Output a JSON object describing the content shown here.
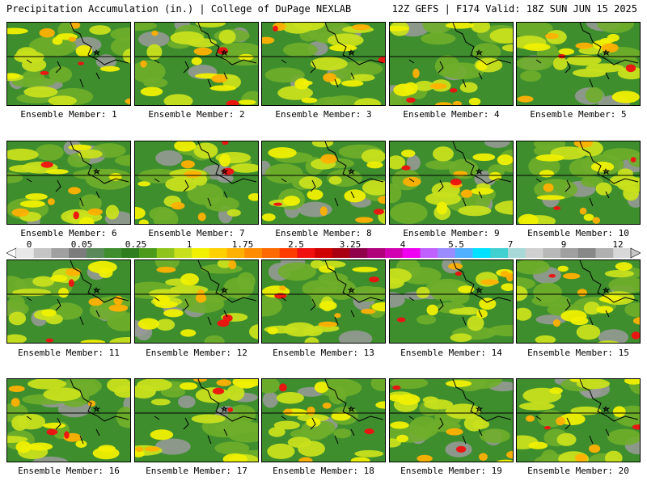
{
  "header": {
    "title": "Precipitation Accumulation (in.) | College of DuPage NEXLAB",
    "run": "12Z GEFS | F174 Valid: 18Z SUN JUN 15 2025"
  },
  "colorbar": {
    "labels": [
      "0",
      "0.05",
      "0.25",
      "1",
      "1.75",
      "2.5",
      "3.25",
      "4",
      "5.5",
      "7",
      "9",
      "12"
    ],
    "colors": [
      "#e8e8e8",
      "#c4c4c4",
      "#a0a0a0",
      "#7c7c7c",
      "#5a8a5a",
      "#3e8e2e",
      "#2e7d1e",
      "#4c9a1c",
      "#8fc41c",
      "#c8e01c",
      "#f0f000",
      "#ffd000",
      "#ffb000",
      "#ff8c00",
      "#ff6a00",
      "#ff3c00",
      "#f01010",
      "#d00000",
      "#a80010",
      "#90004a",
      "#b0007a",
      "#d000b0",
      "#f000f0",
      "#c060ff",
      "#9a8cff",
      "#50b0ff",
      "#00e0ff",
      "#40d0d0",
      "#a8d8d8",
      "#d0d0d0",
      "#b8b8b8",
      "#a0a0a0",
      "#888888",
      "#b0b0b0",
      "#d8d8d8"
    ]
  },
  "panels": [
    {
      "label": "Ensemble Member: 1"
    },
    {
      "label": "Ensemble Member: 2"
    },
    {
      "label": "Ensemble Member: 3"
    },
    {
      "label": "Ensemble Member: 4"
    },
    {
      "label": "Ensemble Member: 5"
    },
    {
      "label": "Ensemble Member: 6"
    },
    {
      "label": "Ensemble Member: 7"
    },
    {
      "label": "Ensemble Member: 8"
    },
    {
      "label": "Ensemble Member: 9"
    },
    {
      "label": "Ensemble Member: 10"
    },
    {
      "label": "Ensemble Member: 11"
    },
    {
      "label": "Ensemble Member: 12"
    },
    {
      "label": "Ensemble Member: 13"
    },
    {
      "label": "Ensemble Member: 14"
    },
    {
      "label": "Ensemble Member: 15"
    },
    {
      "label": "Ensemble Member: 16"
    },
    {
      "label": "Ensemble Member: 17"
    },
    {
      "label": "Ensemble Member: 18"
    },
    {
      "label": "Ensemble Member: 19"
    },
    {
      "label": "Ensemble Member: 20"
    }
  ]
}
